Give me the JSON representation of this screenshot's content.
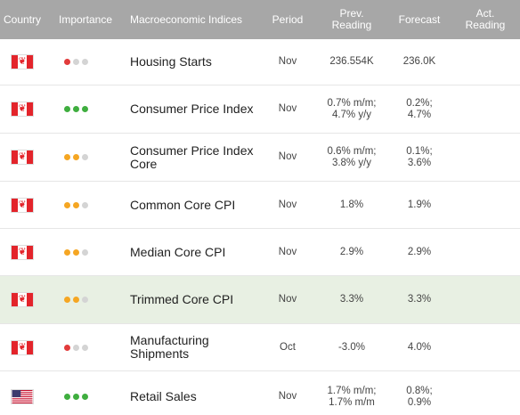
{
  "header": {
    "country": "Country",
    "importance": "Importance",
    "indices": "Macroeconomic Indices",
    "period": "Period",
    "prev": "Prev. Reading",
    "forecast": "Forecast",
    "actual": "Act. Reading"
  },
  "colors": {
    "header_bg": "#a7a7a7",
    "high": "#3fae3f",
    "medium": "#f5a623",
    "low": "#e23b3b",
    "highlight_row": "#e8f0e3"
  },
  "rows": [
    {
      "country": "canada-flag-icon",
      "importance": "low",
      "name": "Housing Starts",
      "period": "Nov",
      "prev": "236.554K",
      "forecast": "236.0K",
      "actual": ""
    },
    {
      "country": "canada-flag-icon",
      "importance": "high",
      "name": "Consumer Price Index",
      "period": "Nov",
      "prev": "0.7% m/m;\n4.7% y/y",
      "forecast": "0.2%;\n4.7%",
      "actual": ""
    },
    {
      "country": "canada-flag-icon",
      "importance": "medium",
      "name": "Consumer Price Index Core",
      "period": "Nov",
      "prev": "0.6% m/m;\n3.8% y/y",
      "forecast": "0.1%;\n3.6%",
      "actual": ""
    },
    {
      "country": "canada-flag-icon",
      "importance": "medium",
      "name": "Common Core CPI",
      "period": "Nov",
      "prev": "1.8%",
      "forecast": "1.9%",
      "actual": ""
    },
    {
      "country": "canada-flag-icon",
      "importance": "medium",
      "name": "Median Core CPI",
      "period": "Nov",
      "prev": "2.9%",
      "forecast": "2.9%",
      "actual": ""
    },
    {
      "country": "canada-flag-icon",
      "importance": "medium",
      "name": "Trimmed Core CPI",
      "period": "Nov",
      "prev": "3.3%",
      "forecast": "3.3%",
      "actual": ""
    },
    {
      "country": "canada-flag-icon",
      "importance": "low",
      "name": "Manufacturing Shipments",
      "period": "Oct",
      "prev": "-3.0%",
      "forecast": "4.0%",
      "actual": ""
    },
    {
      "country": "usa-flag-icon",
      "importance": "high",
      "name": "Retail Sales",
      "period": "Nov",
      "prev": "1.7% m/m;\n1.7% m/m",
      "forecast": "0.8%;\n0.9%",
      "actual": ""
    }
  ]
}
